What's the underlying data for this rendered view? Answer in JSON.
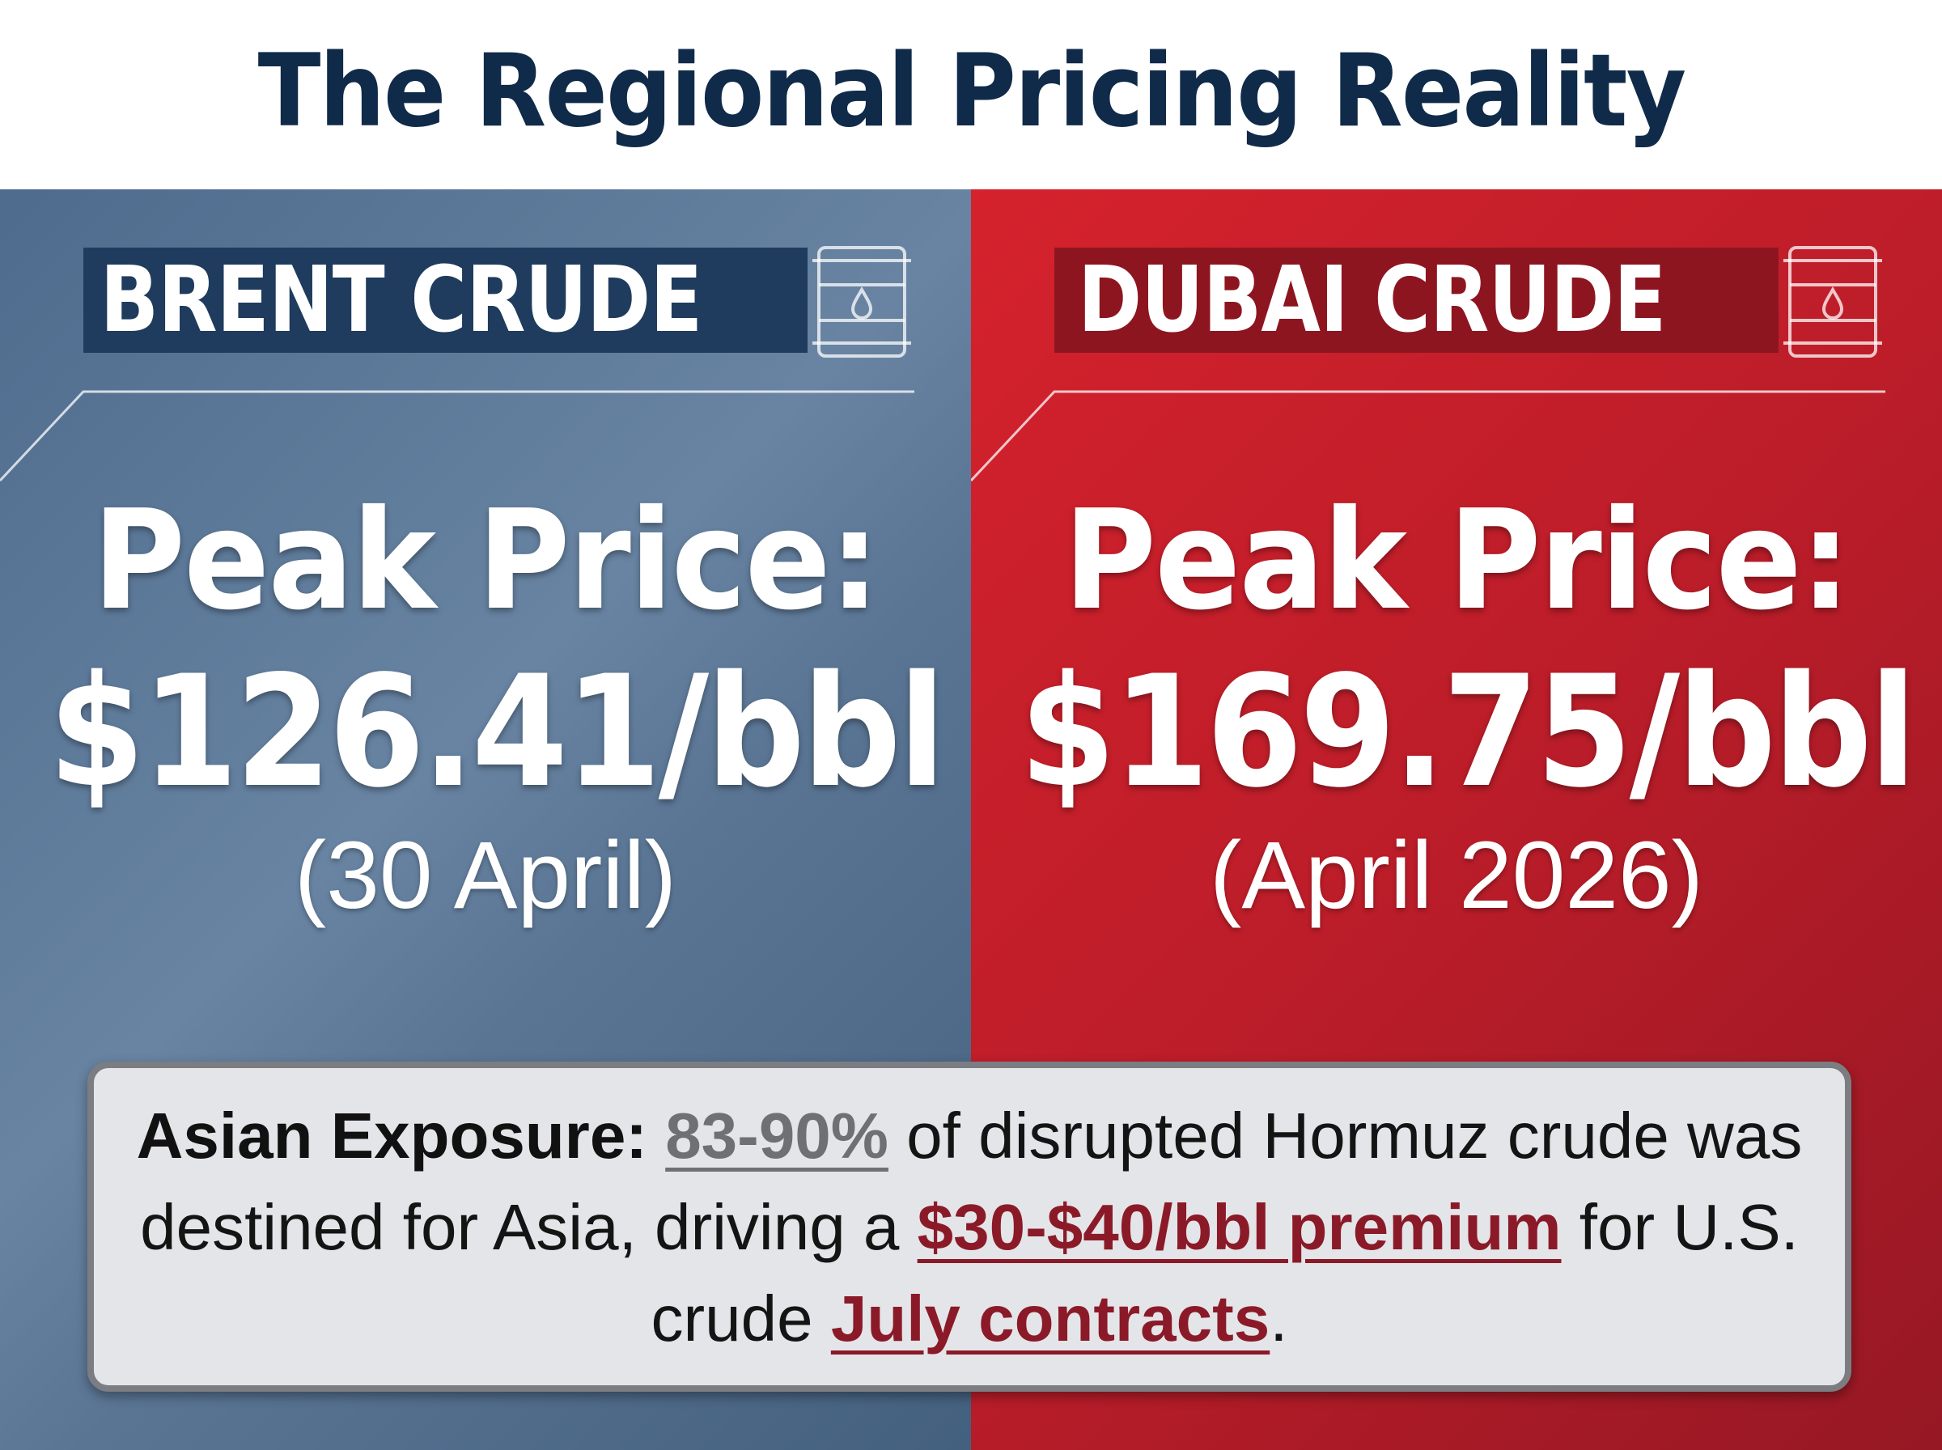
{
  "title": "The Regional Pricing Reality",
  "colors": {
    "title_text": "#102a49",
    "brent_panel": "#5a7594",
    "brent_label_bg": "#1f3b5d",
    "dubai_panel": "#c21f2b",
    "dubai_label_bg": "#8d1520",
    "highlight_red": "#8b1a29",
    "highlight_gray": "#6e7073"
  },
  "brent": {
    "label": "BRENT CRUDE",
    "icon": "oil-barrel-icon",
    "peak_label": "Peak Price:",
    "peak_value": "$126.41/bbl",
    "date": "(30 April)"
  },
  "dubai": {
    "label": "DUBAI CRUDE",
    "icon": "oil-barrel-icon",
    "peak_label": "Peak Price:",
    "peak_value": "$169.75/bbl",
    "date": "(April 2026)"
  },
  "exposure": {
    "lead": "Asian Exposure:",
    "percent": "83-90%",
    "text_1": "of disrupted Hormuz crude was destined for Asia, driving a",
    "premium": "$30-$40/bbl premium",
    "text_2": "for U.S. crude",
    "contracts": "July contracts",
    "end": "."
  }
}
